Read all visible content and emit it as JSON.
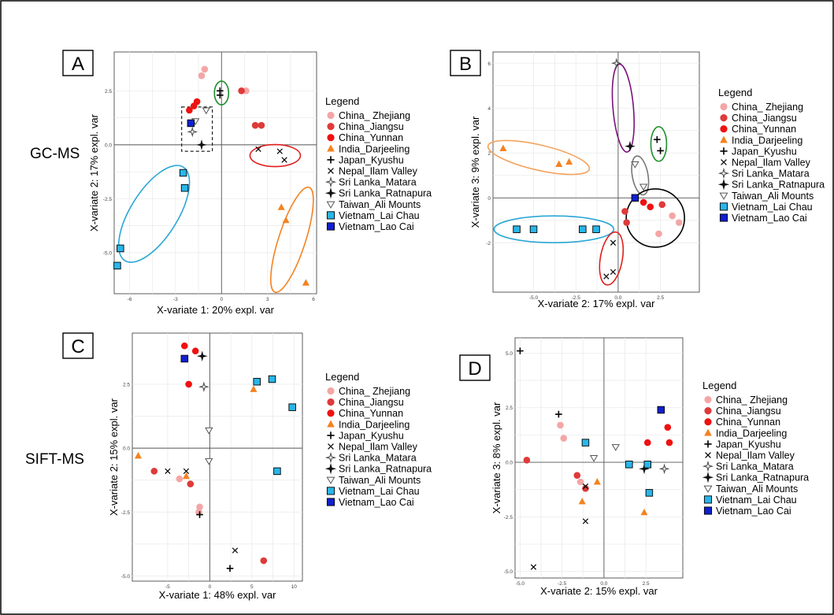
{
  "row_labels": {
    "gcms": "GC-MS",
    "siftms": "SIFT-MS"
  },
  "legend_title": "Legend",
  "legend_entries": [
    {
      "label": "China_ Zhejiang",
      "marker": "circle",
      "color": "#f4a6a6"
    },
    {
      "label": "China_Jiangsu",
      "marker": "circle",
      "color": "#de3a3a"
    },
    {
      "label": "China_Yunnan",
      "marker": "circle",
      "color": "#ee1111"
    },
    {
      "label": "India_Darjeeling",
      "marker": "triangle",
      "color": "#f58220"
    },
    {
      "label": "Japan_Kyushu",
      "marker": "plus",
      "color": "#000000"
    },
    {
      "label": "Nepal_Ilam Valley",
      "marker": "cross",
      "color": "#000000"
    },
    {
      "label": "Sri Lanka_Matara",
      "marker": "star-open",
      "color": "#000000"
    },
    {
      "label": "Sri Lanka_Ratnapura",
      "marker": "star-filled",
      "color": "#000000"
    },
    {
      "label": "Taiwan_Ali Mounts",
      "marker": "triangle-down-open",
      "color": "#000000"
    },
    {
      "label": "Vietnam_Lai Chau",
      "marker": "square",
      "color": "#29b6e8"
    },
    {
      "label": "Vietnam_Lao Cai",
      "marker": "square",
      "color": "#1020d0"
    }
  ],
  "chart_data": [
    {
      "panel": "A",
      "type": "scatter",
      "xlabel": "X-variate 1: 20% expl. var",
      "ylabel": "X-variate 2: 17% expl. var",
      "xlim": [
        -7,
        6.2
      ],
      "ylim": [
        -6.9,
        4.3
      ],
      "xticks": [
        -6,
        -3,
        0,
        3,
        6
      ],
      "yticks": [
        -5.0,
        -2.5,
        0.0,
        2.5
      ],
      "xticklabels": [
        "-6",
        "-3",
        "0",
        "3",
        "6"
      ],
      "yticklabels": [
        "-5.0",
        "-2.5",
        "0.0",
        "2.5"
      ],
      "points": [
        {
          "g": 0,
          "x": -1.1,
          "y": 3.5
        },
        {
          "g": 0,
          "x": -1.3,
          "y": 3.2
        },
        {
          "g": 0,
          "x": 1.6,
          "y": 2.5
        },
        {
          "g": 1,
          "x": 1.3,
          "y": 2.5
        },
        {
          "g": 1,
          "x": 2.2,
          "y": 0.9
        },
        {
          "g": 1,
          "x": 2.6,
          "y": 0.9
        },
        {
          "g": 2,
          "x": -1.6,
          "y": 2.0
        },
        {
          "g": 2,
          "x": -1.8,
          "y": 1.8
        },
        {
          "g": 2,
          "x": -2.1,
          "y": 1.6
        },
        {
          "g": 3,
          "x": 3.9,
          "y": -2.9
        },
        {
          "g": 3,
          "x": 4.2,
          "y": -3.5
        },
        {
          "g": 3,
          "x": 5.5,
          "y": -6.4
        },
        {
          "g": 4,
          "x": -0.1,
          "y": 2.5
        },
        {
          "g": 4,
          "x": -0.1,
          "y": 2.3
        },
        {
          "g": 5,
          "x": 2.4,
          "y": -0.2
        },
        {
          "g": 5,
          "x": 3.8,
          "y": -0.3
        },
        {
          "g": 5,
          "x": 4.1,
          "y": -0.7
        },
        {
          "g": 6,
          "x": -1.9,
          "y": 0.6
        },
        {
          "g": 7,
          "x": -1.3,
          "y": 0.0
        },
        {
          "g": 8,
          "x": -1.7,
          "y": 1.1
        },
        {
          "g": 8,
          "x": -1.0,
          "y": 1.6
        },
        {
          "g": 9,
          "x": -2.5,
          "y": -1.3
        },
        {
          "g": 9,
          "x": -2.4,
          "y": -2.0
        },
        {
          "g": 9,
          "x": -6.6,
          "y": -4.8
        },
        {
          "g": 9,
          "x": -6.8,
          "y": -5.6
        },
        {
          "g": 10,
          "x": -2.0,
          "y": 1.0
        }
      ]
    },
    {
      "panel": "B",
      "type": "scatter",
      "xlabel": "X-variate 2: 17% expl. var",
      "ylabel": "X-variate 3: 9% expl. var",
      "xlim": [
        -7.4,
        4.8
      ],
      "ylim": [
        -4.2,
        6.5
      ],
      "xticks": [
        -5.0,
        -2.5,
        0.0,
        2.5
      ],
      "yticks": [
        -2,
        0,
        2,
        4,
        6
      ],
      "xticklabels": [
        "-5.0",
        "-2.5",
        "0.0",
        "2.5"
      ],
      "yticklabels": [
        "-2",
        "0",
        "2",
        "4",
        "6"
      ],
      "points": [
        {
          "g": 0,
          "x": 3.2,
          "y": -0.8
        },
        {
          "g": 0,
          "x": 3.6,
          "y": -1.1
        },
        {
          "g": 0,
          "x": 2.4,
          "y": -1.6
        },
        {
          "g": 1,
          "x": 2.6,
          "y": -0.3
        },
        {
          "g": 1,
          "x": 0.4,
          "y": -0.6
        },
        {
          "g": 1,
          "x": 0.5,
          "y": -1.1
        },
        {
          "g": 2,
          "x": 1.5,
          "y": -0.2
        },
        {
          "g": 2,
          "x": 1.9,
          "y": -0.4
        },
        {
          "g": 3,
          "x": -6.8,
          "y": 2.2
        },
        {
          "g": 3,
          "x": -3.5,
          "y": 1.5
        },
        {
          "g": 3,
          "x": -2.9,
          "y": 1.6
        },
        {
          "g": 4,
          "x": 2.3,
          "y": 2.6
        },
        {
          "g": 4,
          "x": 2.5,
          "y": 2.1
        },
        {
          "g": 5,
          "x": -0.3,
          "y": -2.0
        },
        {
          "g": 5,
          "x": -0.3,
          "y": -3.3
        },
        {
          "g": 5,
          "x": -0.7,
          "y": -3.5
        },
        {
          "g": 6,
          "x": -0.1,
          "y": 6.0
        },
        {
          "g": 7,
          "x": 0.7,
          "y": 2.3
        },
        {
          "g": 8,
          "x": 1.0,
          "y": 1.5
        },
        {
          "g": 8,
          "x": 1.5,
          "y": 0.5
        },
        {
          "g": 9,
          "x": -6.0,
          "y": -1.4
        },
        {
          "g": 9,
          "x": -5.0,
          "y": -1.4
        },
        {
          "g": 9,
          "x": -2.1,
          "y": -1.4
        },
        {
          "g": 9,
          "x": -1.3,
          "y": -1.4
        },
        {
          "g": 10,
          "x": 1.0,
          "y": 0.0
        }
      ]
    },
    {
      "panel": "C",
      "type": "scatter",
      "xlabel": "X-variate 1: 48% expl. var",
      "ylabel": "X-variate 2: 15% expl. var",
      "xlim": [
        -9.2,
        11.0
      ],
      "ylim": [
        -5.2,
        4.5
      ],
      "xticks": [
        -5,
        0,
        5,
        10
      ],
      "yticks": [
        -5.0,
        -2.5,
        0.0,
        2.5
      ],
      "xticklabels": [
        "-5",
        "0",
        "5",
        "10"
      ],
      "yticklabels": [
        "-5.0",
        "-2.5",
        "0.0",
        "2.5"
      ],
      "points": [
        {
          "g": 0,
          "x": -3.6,
          "y": -1.2
        },
        {
          "g": 0,
          "x": -1.2,
          "y": -2.3
        },
        {
          "g": 0,
          "x": -1.3,
          "y": -2.5
        },
        {
          "g": 1,
          "x": -6.6,
          "y": -0.9
        },
        {
          "g": 1,
          "x": -2.3,
          "y": -1.4
        },
        {
          "g": 1,
          "x": 6.4,
          "y": -4.4
        },
        {
          "g": 2,
          "x": -3.0,
          "y": 4.0
        },
        {
          "g": 2,
          "x": -1.7,
          "y": 3.8
        },
        {
          "g": 2,
          "x": -2.5,
          "y": 2.5
        },
        {
          "g": 3,
          "x": -8.5,
          "y": -0.3
        },
        {
          "g": 3,
          "x": -2.8,
          "y": -1.1
        },
        {
          "g": 3,
          "x": 5.2,
          "y": 2.3
        },
        {
          "g": 4,
          "x": -1.2,
          "y": -2.6
        },
        {
          "g": 4,
          "x": 2.4,
          "y": -4.7
        },
        {
          "g": 5,
          "x": -5.0,
          "y": -0.9
        },
        {
          "g": 5,
          "x": -2.8,
          "y": -0.9
        },
        {
          "g": 5,
          "x": 3.0,
          "y": -4.0
        },
        {
          "g": 6,
          "x": -0.7,
          "y": 2.4
        },
        {
          "g": 7,
          "x": -0.9,
          "y": 3.6
        },
        {
          "g": 8,
          "x": -0.1,
          "y": 0.7
        },
        {
          "g": 8,
          "x": -0.1,
          "y": -0.5
        },
        {
          "g": 9,
          "x": 5.6,
          "y": 2.6
        },
        {
          "g": 9,
          "x": 7.4,
          "y": 2.7
        },
        {
          "g": 9,
          "x": 9.8,
          "y": 1.6
        },
        {
          "g": 9,
          "x": 8.0,
          "y": -0.9
        },
        {
          "g": 10,
          "x": -3.0,
          "y": 3.5
        }
      ]
    },
    {
      "panel": "D",
      "type": "scatter",
      "xlabel": "X-variate 2: 15% expl. var",
      "ylabel": "X-variate 3: 8% expl. var",
      "xlim": [
        -5.3,
        4.7
      ],
      "ylim": [
        -5.3,
        5.7
      ],
      "xticks": [
        -5.0,
        -2.5,
        0.0,
        2.5
      ],
      "yticks": [
        -5.0,
        -2.5,
        0.0,
        2.5,
        5.0
      ],
      "xticklabels": [
        "-5.0",
        "-2.5",
        "0.0",
        "2.5"
      ],
      "yticklabels": [
        "-5.0",
        "-2.5",
        "0.0",
        "2.5",
        "5.0"
      ],
      "points": [
        {
          "g": 0,
          "x": -2.6,
          "y": 1.7
        },
        {
          "g": 0,
          "x": -2.4,
          "y": 1.1
        },
        {
          "g": 0,
          "x": -1.4,
          "y": -0.9
        },
        {
          "g": 1,
          "x": -4.6,
          "y": 0.1
        },
        {
          "g": 1,
          "x": -1.6,
          "y": -0.6
        },
        {
          "g": 1,
          "x": -1.1,
          "y": -1.2
        },
        {
          "g": 2,
          "x": 2.6,
          "y": 0.9
        },
        {
          "g": 2,
          "x": 3.8,
          "y": 1.6
        },
        {
          "g": 2,
          "x": 3.9,
          "y": 0.9
        },
        {
          "g": 3,
          "x": -1.3,
          "y": -1.8
        },
        {
          "g": 3,
          "x": -0.4,
          "y": -0.9
        },
        {
          "g": 3,
          "x": 2.4,
          "y": -2.3
        },
        {
          "g": 4,
          "x": -5.0,
          "y": 5.1
        },
        {
          "g": 4,
          "x": -2.7,
          "y": 2.2
        },
        {
          "g": 5,
          "x": -4.2,
          "y": -4.8
        },
        {
          "g": 5,
          "x": -1.1,
          "y": -1.1
        },
        {
          "g": 5,
          "x": -1.1,
          "y": -2.7
        },
        {
          "g": 6,
          "x": 3.6,
          "y": -0.3
        },
        {
          "g": 7,
          "x": 2.4,
          "y": -0.3
        },
        {
          "g": 8,
          "x": -0.6,
          "y": 0.2
        },
        {
          "g": 8,
          "x": 0.7,
          "y": 0.7
        },
        {
          "g": 9,
          "x": -1.1,
          "y": 0.9
        },
        {
          "g": 9,
          "x": 1.5,
          "y": -0.1
        },
        {
          "g": 9,
          "x": 2.6,
          "y": -0.1
        },
        {
          "g": 9,
          "x": 2.7,
          "y": -1.4
        },
        {
          "g": 10,
          "x": 3.4,
          "y": 2.4
        }
      ]
    }
  ]
}
